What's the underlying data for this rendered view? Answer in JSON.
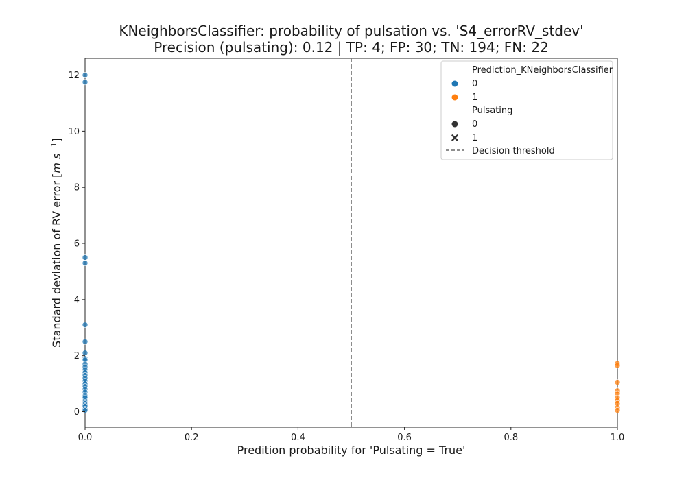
{
  "chart_data": {
    "type": "scatter",
    "title_line1": "KNeighborsClassifier: probability of pulsation vs. 'S4_errorRV_stdev'",
    "title_line2": "Precision (pulsating): 0.12 | TP: 4; FP: 30; TN: 194; FN: 22",
    "xlabel": "Predition probability for 'Pulsating = True'",
    "ylabel_main": "Standard deviation of RV error [",
    "ylabel_unit_m": "m s",
    "ylabel_exp": "−1",
    "ylabel_close": "]",
    "xlim": [
      0.0,
      1.0
    ],
    "ylim": [
      -0.55,
      12.6
    ],
    "xticks": [
      0.0,
      0.2,
      0.4,
      0.6,
      0.8,
      1.0
    ],
    "xtick_labels": [
      "0.0",
      "0.2",
      "0.4",
      "0.6",
      "0.8",
      "1.0"
    ],
    "yticks": [
      0,
      2,
      4,
      6,
      8,
      10,
      12
    ],
    "ytick_labels": [
      "0",
      "2",
      "4",
      "6",
      "8",
      "10",
      "12"
    ],
    "decision_threshold": 0.5,
    "grid": false,
    "legend_position": "top-right",
    "legend": {
      "hue_title": "Prediction_KNeighborsClassifier",
      "hue_entries": [
        {
          "label": "0",
          "color": "#1f77b4"
        },
        {
          "label": "1",
          "color": "#ff7f0e"
        }
      ],
      "style_title": "Pulsating",
      "style_entries": [
        {
          "label": "0",
          "marker": "circle"
        },
        {
          "label": "1",
          "marker": "x"
        }
      ],
      "threshold_label": "Decision threshold"
    },
    "series": [
      {
        "name": "0",
        "color": "#1f77b4",
        "x": [
          0,
          0,
          0,
          0,
          0,
          0,
          0,
          0,
          0,
          0,
          0,
          0,
          0,
          0,
          0,
          0,
          0,
          0,
          0,
          0,
          0,
          0,
          0,
          0,
          0,
          0,
          0,
          0,
          0,
          0
        ],
        "y": [
          12.0,
          11.75,
          5.5,
          5.3,
          3.1,
          2.5,
          2.1,
          1.9,
          1.85,
          1.7,
          1.6,
          1.5,
          1.4,
          1.3,
          1.2,
          1.1,
          1.0,
          0.9,
          0.8,
          0.7,
          0.6,
          0.55,
          0.5,
          0.4,
          0.35,
          0.3,
          0.25,
          0.2,
          0.1,
          0.05
        ]
      },
      {
        "name": "1",
        "color": "#ff7f0e",
        "x": [
          1,
          1,
          1,
          1,
          1,
          1,
          1,
          1,
          1,
          1
        ],
        "y": [
          1.72,
          1.65,
          1.05,
          0.75,
          0.65,
          0.5,
          0.4,
          0.3,
          0.15,
          0.05
        ]
      }
    ]
  }
}
